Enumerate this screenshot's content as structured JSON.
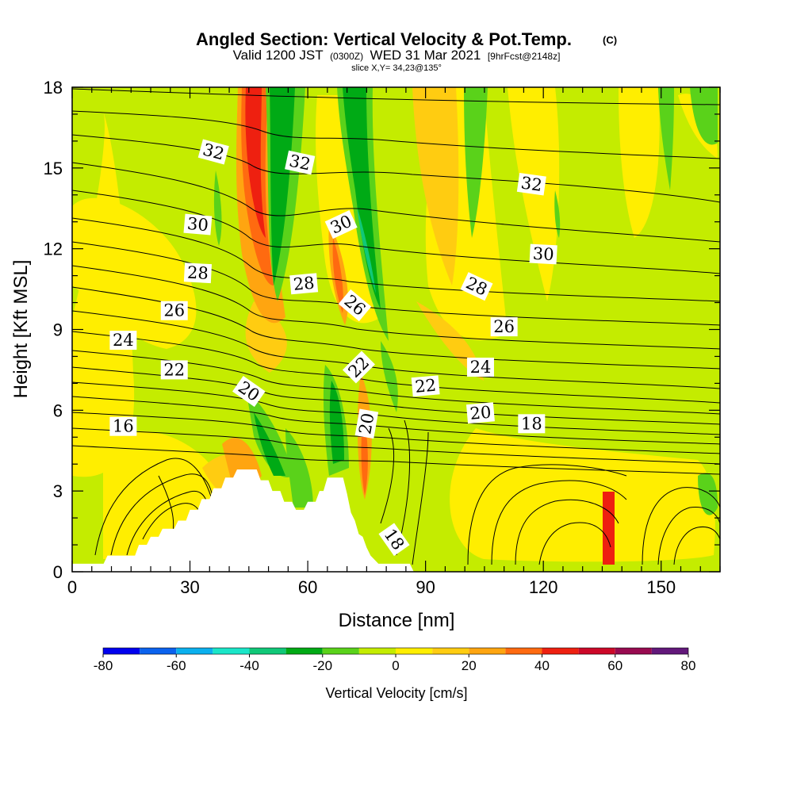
{
  "title": {
    "main": "Angled Section: Vertical Velocity & Pot.Temp.",
    "copyright": "(C)",
    "valid_prefix": "Valid 1200 JST",
    "utc": "(0300Z)",
    "valid_suffix": "WED 31 Mar 2021",
    "forecast": "[9hrFcst@2148z]",
    "slice": "slice X,Y= 34,23@135°"
  },
  "colors": {
    "levels": [
      "#0000ee",
      "#0b62ee",
      "#0bb0ee",
      "#1ae6c8",
      "#10c878",
      "#00aa15",
      "#5ad21a",
      "#c4ec00",
      "#ffee00",
      "#ffcc11",
      "#ffa510",
      "#ff6a10",
      "#ee2010",
      "#cc0828",
      "#980a50",
      "#62187a"
    ],
    "terrain": "#ffffff",
    "contour": "#000000"
  },
  "chart_data": {
    "type": "heatmap",
    "xlabel": "Distance [nm]",
    "ylabel": "Height [Kft MSL]",
    "xlim": [
      0,
      165
    ],
    "ylim": [
      0,
      18
    ],
    "x_ticks": [
      0,
      30,
      60,
      90,
      120,
      150
    ],
    "y_ticks": [
      0,
      3,
      6,
      9,
      12,
      15,
      18
    ],
    "colorbar": {
      "label": "Vertical Velocity [cm/s]",
      "min": -80,
      "max": 80,
      "step": 10,
      "tick_labels": [
        -80,
        -60,
        -40,
        -20,
        0,
        20,
        40,
        60,
        80
      ]
    },
    "contour_labels": [
      {
        "text": "32",
        "x": 36,
        "y": 15.6,
        "rotate": 15
      },
      {
        "text": "32",
        "x": 58,
        "y": 15.2,
        "rotate": 12
      },
      {
        "text": "32",
        "x": 117,
        "y": 14.4,
        "rotate": 8
      },
      {
        "text": "30",
        "x": 32,
        "y": 12.9,
        "rotate": 5
      },
      {
        "text": "30",
        "x": 68.5,
        "y": 12.9,
        "rotate": -25
      },
      {
        "text": "30",
        "x": 120,
        "y": 11.8,
        "rotate": 3
      },
      {
        "text": "28",
        "x": 32,
        "y": 11.1,
        "rotate": 3
      },
      {
        "text": "28",
        "x": 59,
        "y": 10.7,
        "rotate": -5
      },
      {
        "text": "28",
        "x": 103,
        "y": 10.6,
        "rotate": 25
      },
      {
        "text": "26",
        "x": 26,
        "y": 9.7,
        "rotate": 0
      },
      {
        "text": "26",
        "x": 72,
        "y": 9.9,
        "rotate": 40
      },
      {
        "text": "26",
        "x": 110,
        "y": 9.1,
        "rotate": 0
      },
      {
        "text": "24",
        "x": 13,
        "y": 8.6,
        "rotate": 0
      },
      {
        "text": "24",
        "x": 104,
        "y": 7.6,
        "rotate": 0
      },
      {
        "text": "22",
        "x": 26,
        "y": 7.5,
        "rotate": 0
      },
      {
        "text": "22",
        "x": 73,
        "y": 7.6,
        "rotate": -45
      },
      {
        "text": "22",
        "x": 90,
        "y": 6.9,
        "rotate": -5
      },
      {
        "text": "20",
        "x": 45,
        "y": 6.7,
        "rotate": 35
      },
      {
        "text": "20",
        "x": 75,
        "y": 5.5,
        "rotate": -80
      },
      {
        "text": "20",
        "x": 104,
        "y": 5.9,
        "rotate": -5
      },
      {
        "text": "18",
        "x": 117,
        "y": 5.5,
        "rotate": 0
      },
      {
        "text": "18",
        "x": 82,
        "y": 1.2,
        "rotate": 55
      },
      {
        "text": "16",
        "x": 13,
        "y": 5.4,
        "rotate": 0
      }
    ],
    "terrain_profile": [
      [
        0,
        0.3
      ],
      [
        8,
        0.3
      ],
      [
        9,
        0.6
      ],
      [
        16,
        0.6
      ],
      [
        17,
        1
      ],
      [
        19,
        1
      ],
      [
        20,
        1.3
      ],
      [
        22,
        1.3
      ],
      [
        23,
        1.6
      ],
      [
        26,
        1.6
      ],
      [
        27,
        1.9
      ],
      [
        29,
        1.9
      ],
      [
        30,
        2.3
      ],
      [
        32,
        2.3
      ],
      [
        33,
        2.7
      ],
      [
        35,
        2.7
      ],
      [
        36,
        3.1
      ],
      [
        38,
        3.1
      ],
      [
        39,
        3.5
      ],
      [
        41,
        3.5
      ],
      [
        42,
        3.8
      ],
      [
        47,
        3.8
      ],
      [
        48,
        3.4
      ],
      [
        50,
        3.4
      ],
      [
        51,
        3.0
      ],
      [
        53,
        3.0
      ],
      [
        54,
        2.6
      ],
      [
        56,
        2.6
      ],
      [
        57,
        2.3
      ],
      [
        59,
        2.3
      ],
      [
        60,
        2.6
      ],
      [
        62,
        2.6
      ],
      [
        63,
        3.0
      ],
      [
        64,
        3.0
      ],
      [
        65,
        3.5
      ],
      [
        69,
        3.5
      ],
      [
        70,
        2.9
      ],
      [
        71,
        2.2
      ],
      [
        72,
        1.9
      ],
      [
        73,
        1.4
      ],
      [
        74,
        1.3
      ],
      [
        75,
        0.9
      ],
      [
        76,
        0.6
      ],
      [
        78,
        0.3
      ],
      [
        86,
        0.3
      ],
      [
        87,
        0
      ]
    ]
  }
}
